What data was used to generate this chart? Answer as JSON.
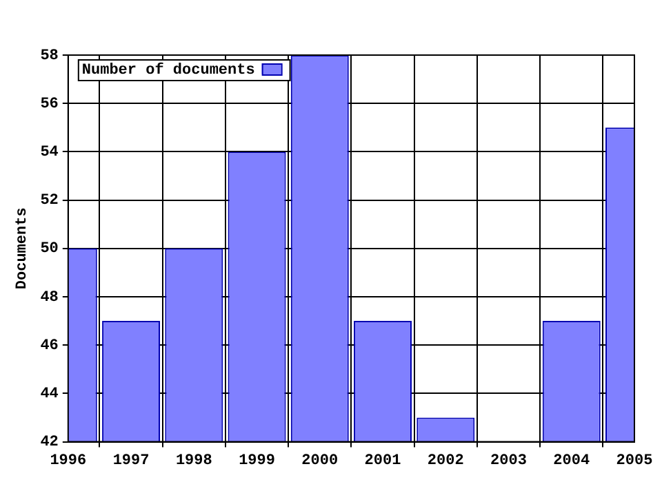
{
  "chart_data": {
    "type": "bar",
    "ylabel": "Documents",
    "x": [
      1996,
      1997,
      1998,
      1999,
      2000,
      2001,
      2002,
      2003,
      2004,
      2005
    ],
    "series": [
      {
        "name": "Number of documents",
        "color": "#8080ff",
        "values": [
          50,
          47,
          50,
          54,
          58,
          47,
          43,
          null,
          47,
          55
        ]
      }
    ],
    "xlim": [
      1996,
      2005
    ],
    "xticks": [
      1996,
      1997,
      1998,
      1999,
      2000,
      2001,
      2002,
      2003,
      2004,
      2005
    ],
    "ylim": [
      42,
      58
    ],
    "yticks": [
      42,
      44,
      46,
      48,
      50,
      52,
      54,
      56,
      58
    ],
    "grid": true,
    "legend": "top left"
  }
}
